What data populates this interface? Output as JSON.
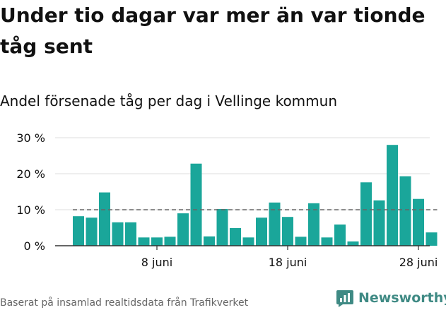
{
  "title": "Under tio dagar var mer än var tionde tåg sent",
  "subtitle": "Andel försenade tåg per dag i Vellinge kommun",
  "footer": {
    "source": "Baserat på insamlad realtidsdata från Trafikverket",
    "brand": "Newsworthy",
    "brand_icon": "newsworthy-logo-icon"
  },
  "colors": {
    "bar": "#1aa69a",
    "reference_line": "#666666",
    "grid": "#dddddd",
    "axis": "#333333",
    "brand": "#3f8a84"
  },
  "chart_data": {
    "type": "bar",
    "title": "Andel försenade tåg per dag i Vellinge kommun",
    "x_start": "2 juni",
    "x_end": "29 juni",
    "categories": [
      "2 juni",
      "3 juni",
      "4 juni",
      "5 juni",
      "6 juni",
      "7 juni",
      "8 juni",
      "9 juni",
      "10 juni",
      "11 juni",
      "12 juni",
      "13 juni",
      "14 juni",
      "15 juni",
      "16 juni",
      "17 juni",
      "18 juni",
      "19 juni",
      "20 juni",
      "21 juni",
      "22 juni",
      "23 juni",
      "24 juni",
      "25 juni",
      "26 juni",
      "27 juni",
      "28 juni",
      "29 juni"
    ],
    "values": [
      8.2,
      7.8,
      14.8,
      6.5,
      6.5,
      2.3,
      2.3,
      2.5,
      9.0,
      22.8,
      2.6,
      10.2,
      4.9,
      2.3,
      7.8,
      12.0,
      8.0,
      2.5,
      11.8,
      2.3,
      5.9,
      1.2,
      17.6,
      12.6,
      28.0,
      19.3,
      13.0,
      3.7
    ],
    "reference_value": 10,
    "reference_line_style": "dashed",
    "ylim": [
      0,
      30
    ],
    "yticks": [
      0,
      10,
      20,
      30
    ],
    "ytick_labels": [
      "0 %",
      "10 %",
      "20 %",
      "30 %"
    ],
    "xtick_indices": [
      6,
      16,
      26
    ],
    "xtick_labels": [
      "8 juni",
      "18 juni",
      "28 juni"
    ],
    "grid": "horizontal",
    "legend": "none"
  }
}
